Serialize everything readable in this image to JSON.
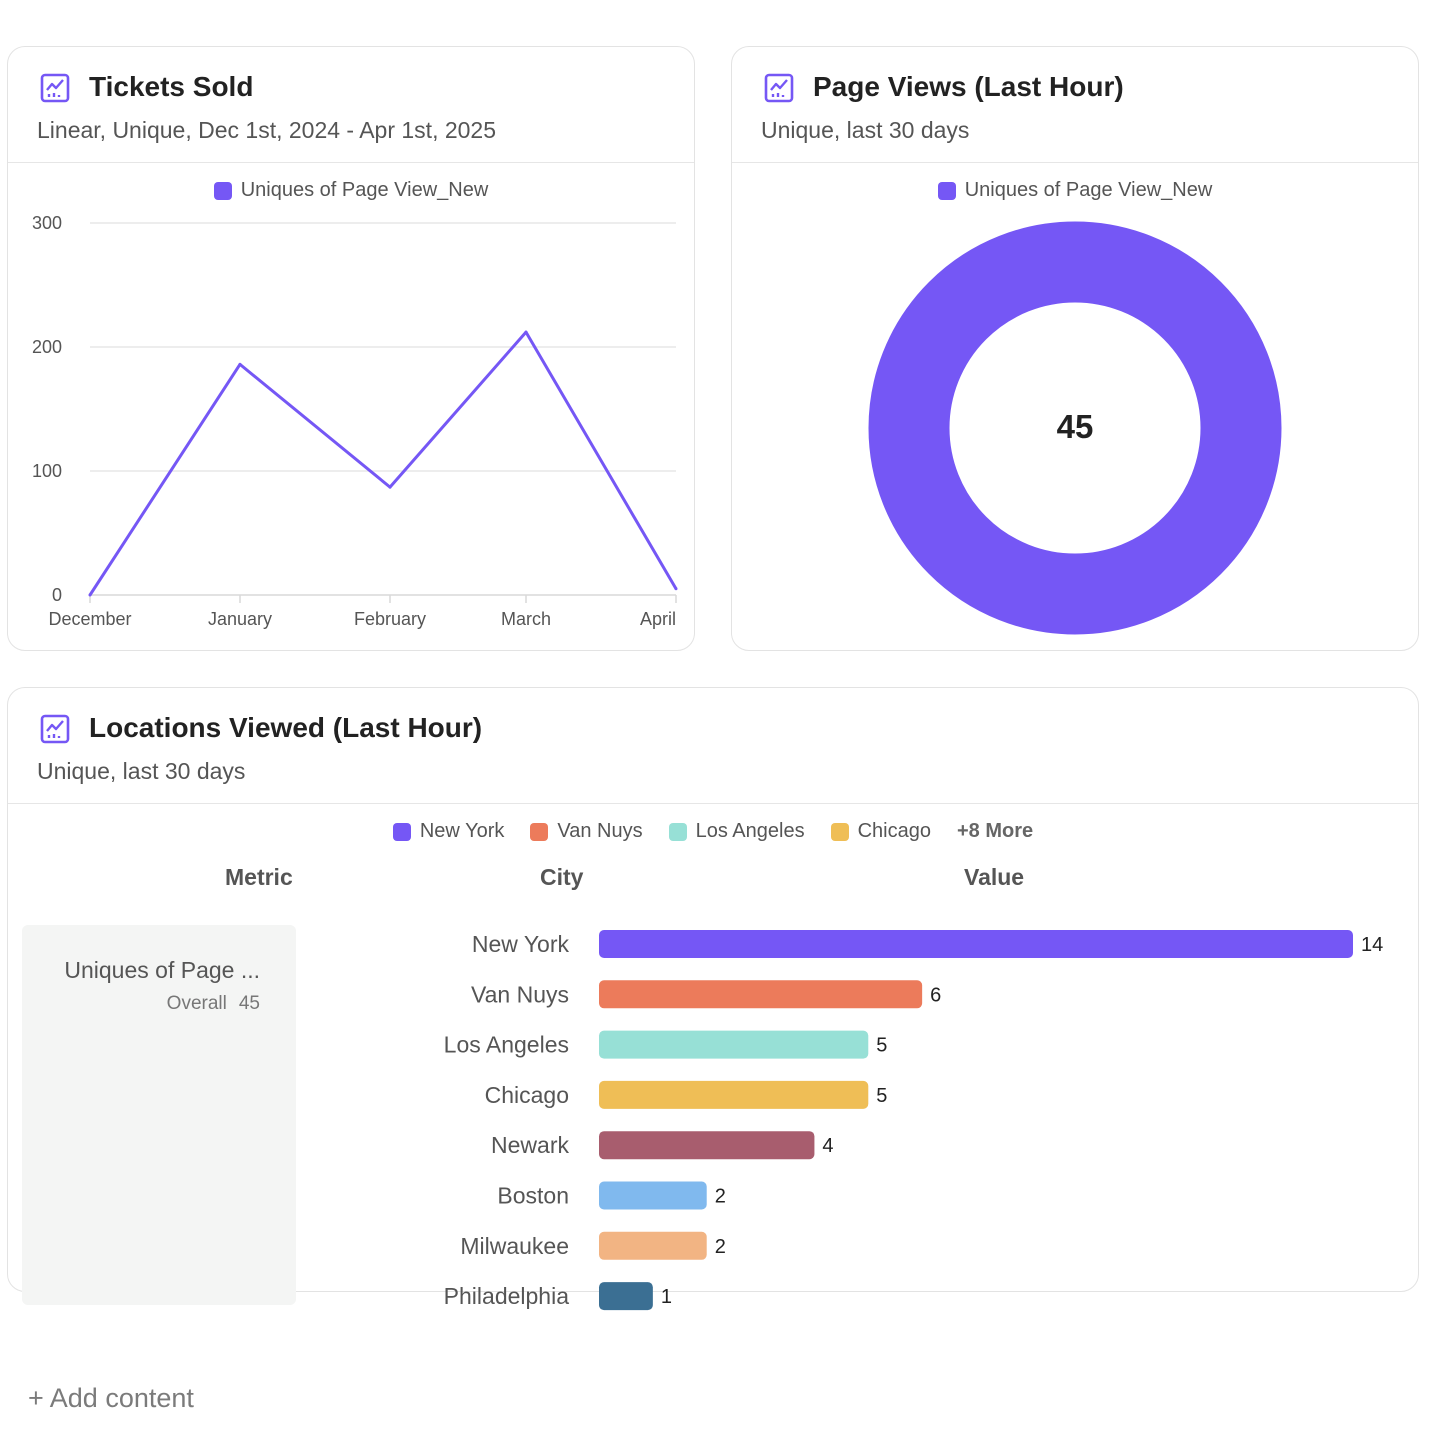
{
  "colors": {
    "accent": "#7557f5",
    "grid": "#e7e7e7",
    "axis": "#d9d9d9"
  },
  "cards": {
    "tickets": {
      "title": "Tickets Sold",
      "subtitle": "Linear, Unique, Dec 1st, 2024 - Apr 1st, 2025",
      "icon": "line-chart-icon"
    },
    "pageviews": {
      "title": "Page Views (Last Hour)",
      "subtitle": "Unique, last 30 days",
      "icon": "line-chart-icon"
    },
    "locations": {
      "title": "Locations Viewed (Last Hour)",
      "subtitle": "Unique, last 30 days",
      "icon": "line-chart-icon"
    }
  },
  "legend": {
    "locations_more": "+8 More"
  },
  "locations_table": {
    "headers": {
      "metric": "Metric",
      "city": "City",
      "value": "Value"
    },
    "metric_name": "Uniques of Page ...",
    "overall_label": "Overall",
    "overall_value": "45"
  },
  "footer": {
    "add_content": "+ Add content"
  },
  "chart_data": [
    {
      "type": "line",
      "title": "Tickets Sold",
      "series": [
        {
          "name": "Uniques of Page View_New",
          "color": "#7557f5",
          "values": [
            0,
            186,
            87,
            212,
            5
          ]
        }
      ],
      "categories": [
        "December",
        "January",
        "February",
        "March",
        "April"
      ],
      "yticks": [
        "0",
        "100",
        "200",
        "300"
      ],
      "ylim": [
        0,
        300
      ],
      "grid": true,
      "legend": "top-center"
    },
    {
      "type": "pie",
      "title": "Page Views (Last Hour)",
      "donut": true,
      "series": [
        {
          "name": "Uniques of Page View_New",
          "color": "#7557f5",
          "values": [
            45
          ]
        }
      ],
      "center_label": "45",
      "legend": "top-center"
    },
    {
      "type": "bar",
      "orientation": "horizontal",
      "title": "Locations Viewed (Last Hour)",
      "categories": [
        "New York",
        "Van Nuys",
        "Los Angeles",
        "Chicago",
        "Newark",
        "Boston",
        "Milwaukee",
        "Philadelphia"
      ],
      "values": [
        14,
        6,
        5,
        5,
        4,
        2,
        2,
        1
      ],
      "value_labels": [
        "14",
        "6",
        "5",
        "5",
        "4",
        "2",
        "2",
        "1"
      ],
      "colors": [
        "#7557f5",
        "#ec7b5b",
        "#97e0d6",
        "#efbe56",
        "#a85d6e",
        "#80b9ee",
        "#f2b483",
        "#3b6f93"
      ],
      "legend_entries": [
        {
          "name": "New York",
          "color": "#7557f5"
        },
        {
          "name": "Van Nuys",
          "color": "#ec7b5b"
        },
        {
          "name": "Los Angeles",
          "color": "#97e0d6"
        },
        {
          "name": "Chicago",
          "color": "#efbe56"
        }
      ],
      "xlim": [
        0,
        14
      ]
    }
  ]
}
